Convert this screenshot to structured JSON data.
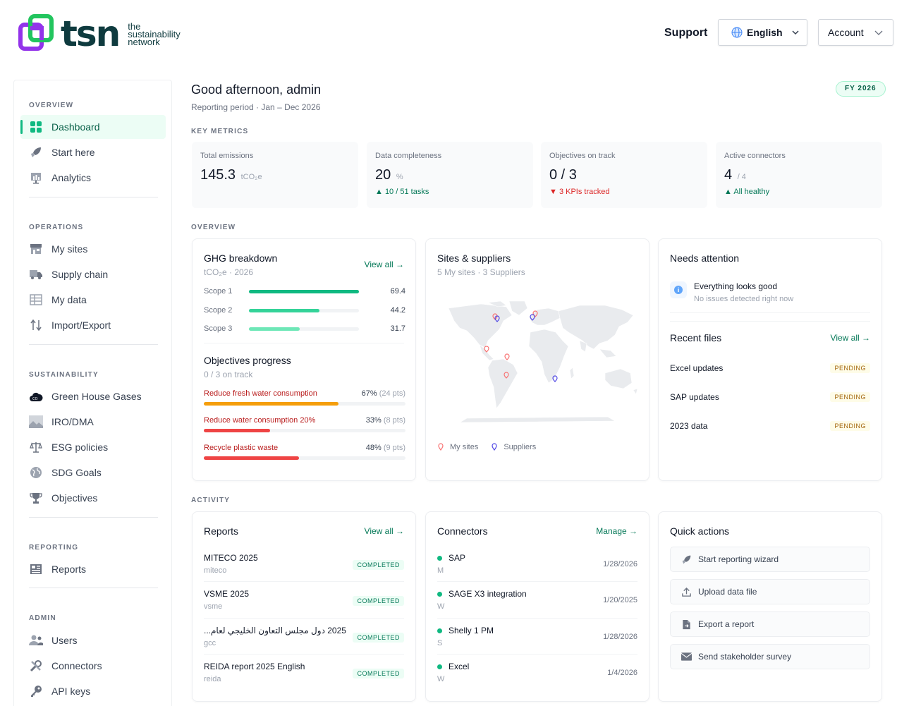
{
  "brand": {
    "word": "tsn",
    "tagline_1": "the",
    "tagline_2": "sustainability",
    "tagline_3": "network"
  },
  "header": {
    "support": "Support",
    "language": "English",
    "account": "Account"
  },
  "sidebar": {
    "sections": [
      {
        "title": "OVERVIEW",
        "items": [
          {
            "label": "Dashboard",
            "icon": "grid-icon",
            "active": true
          },
          {
            "label": "Start here",
            "icon": "rocket-icon"
          },
          {
            "label": "Analytics",
            "icon": "chart-icon"
          }
        ]
      },
      {
        "title": "OPERATIONS",
        "items": [
          {
            "label": "My sites",
            "icon": "store-icon"
          },
          {
            "label": "Supply chain",
            "icon": "truck-icon"
          },
          {
            "label": "My data",
            "icon": "table-icon"
          },
          {
            "label": "Import/Export",
            "icon": "transfer-icon"
          }
        ]
      },
      {
        "title": "SUSTAINABILITY",
        "items": [
          {
            "label": "Green House Gases",
            "icon": "co2-cloud-icon"
          },
          {
            "label": "IRO/DMA",
            "icon": "image-icon"
          },
          {
            "label": "ESG policies",
            "icon": "scale-icon"
          },
          {
            "label": "SDG Goals",
            "icon": "globe-icon"
          },
          {
            "label": "Objectives",
            "icon": "trophy-icon"
          }
        ]
      },
      {
        "title": "REPORTING",
        "items": [
          {
            "label": "Reports",
            "icon": "report-icon"
          }
        ]
      },
      {
        "title": "ADMIN",
        "items": [
          {
            "label": "Users",
            "icon": "users-icon"
          },
          {
            "label": "Connectors",
            "icon": "tools-icon"
          },
          {
            "label": "API keys",
            "icon": "key-icon"
          }
        ]
      }
    ]
  },
  "main": {
    "greeting": "Good afternoon, admin",
    "period": "Reporting period · Jan – Dec 2026",
    "fy_badge": "FY 2026",
    "key_metrics_label": "KEY METRICS",
    "overview_label": "OVERVIEW",
    "activity_label": "ACTIVITY"
  },
  "metrics": [
    {
      "title": "Total emissions",
      "value": "145.3",
      "unit": "tCO₂e",
      "sub": ""
    },
    {
      "title": "Data completeness",
      "value": "20",
      "unit": "%",
      "sub": "▲ 10 / 51 tasks",
      "trend": "up"
    },
    {
      "title": "Objectives on track",
      "value": "0 / 3",
      "unit": "",
      "sub": "▼ 3 KPIs tracked",
      "trend": "down"
    },
    {
      "title": "Active connectors",
      "value": "4",
      "unit": "/ 4",
      "sub": "▲ All healthy",
      "trend": "up"
    }
  ],
  "ghg": {
    "title": "GHG breakdown",
    "subtitle": "tCO₂e · 2026",
    "view_all": "View all →",
    "scopes": [
      {
        "label": "Scope 1",
        "value": "69.4",
        "fraction": 1.0,
        "color": "#10b981"
      },
      {
        "label": "Scope 2",
        "value": "44.2",
        "fraction": 0.64,
        "color": "#34d399"
      },
      {
        "label": "Scope 3",
        "value": "31.7",
        "fraction": 0.46,
        "color": "#6ee7b7"
      }
    ]
  },
  "objectives": {
    "title": "Objectives progress",
    "subtitle": "0 / 3 on track",
    "items": [
      {
        "name": "Reduce fresh water consumption",
        "pct": "67%",
        "pts": "(24 pts)",
        "fraction": 0.67,
        "color": "#f59e0b"
      },
      {
        "name": "Reduce water consumption 20%",
        "pct": "33%",
        "pts": "(8 pts)",
        "fraction": 0.33,
        "color": "#ef4444"
      },
      {
        "name": "Recycle plastic waste",
        "pct": "48%",
        "pts": "(9 pts)",
        "fraction": 0.48,
        "color": "#ef4444"
      }
    ]
  },
  "sites": {
    "title": "Sites & suppliers",
    "subtitle": "5 My sites · 3 Suppliers",
    "legend_sites": "My sites",
    "legend_suppliers": "Suppliers"
  },
  "attention": {
    "title": "Needs attention",
    "item_title": "Everything looks good",
    "item_sub": "No issues detected right now"
  },
  "recent_files": {
    "title": "Recent files",
    "view_all": "View all →",
    "items": [
      {
        "name": "Excel updates",
        "status": "PENDING"
      },
      {
        "name": "SAP updates",
        "status": "PENDING"
      },
      {
        "name": "2023 data",
        "status": "PENDING"
      }
    ]
  },
  "reports": {
    "title": "Reports",
    "view_all": "View all →",
    "items": [
      {
        "name": "MITECO 2025",
        "slug": "miteco",
        "status": "COMPLETED"
      },
      {
        "name": "VSME 2025",
        "slug": "vsme",
        "status": "COMPLETED"
      },
      {
        "name": "2025 دول مجلس التعاون الخليجي لعام...",
        "slug": "gcc",
        "status": "COMPLETED"
      },
      {
        "name": "REIDA report 2025 English",
        "slug": "reida",
        "status": "COMPLETED"
      }
    ]
  },
  "connectors": {
    "title": "Connectors",
    "manage": "Manage →",
    "items": [
      {
        "name": "SAP",
        "initial": "M",
        "date": "1/28/2026"
      },
      {
        "name": "SAGE X3 integration",
        "initial": "W",
        "date": "1/20/2025"
      },
      {
        "name": "Shelly 1 PM",
        "initial": "S",
        "date": "1/28/2026"
      },
      {
        "name": "Excel",
        "initial": "W",
        "date": "1/4/2026"
      }
    ]
  },
  "quick_actions": {
    "title": "Quick actions",
    "items": [
      {
        "label": "Start reporting wizard",
        "icon": "rocket-icon"
      },
      {
        "label": "Upload data file",
        "icon": "upload-icon"
      },
      {
        "label": "Export a report",
        "icon": "file-export-icon"
      },
      {
        "label": "Send stakeholder survey",
        "icon": "mail-icon"
      }
    ]
  }
}
